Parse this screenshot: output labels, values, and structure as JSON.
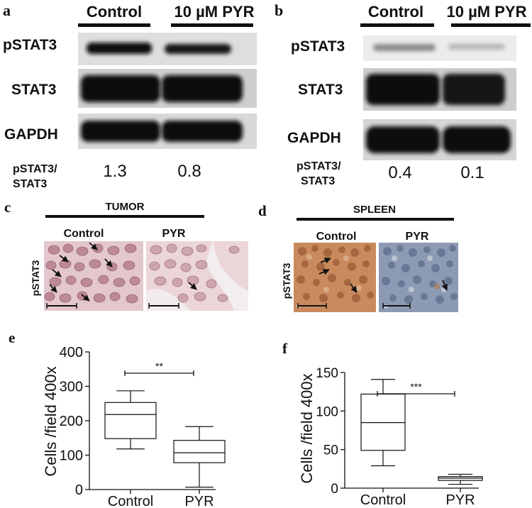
{
  "panel_letters": {
    "a": "a",
    "b": "b",
    "c": "c",
    "d": "d",
    "e": "e",
    "f": "f"
  },
  "western_a": {
    "conditions": [
      "Control",
      "10 µM PYR"
    ],
    "rows": [
      "pSTAT3",
      "STAT3",
      "GAPDH"
    ],
    "ratio_label": [
      "pSTAT3/",
      "STAT3"
    ],
    "ratios": [
      "1.3",
      "0.8"
    ]
  },
  "western_b": {
    "conditions": [
      "Control",
      "10 µM PYR"
    ],
    "rows": [
      "pSTAT3",
      "STAT3",
      "GAPDH"
    ],
    "ratio_label": [
      "pSTAT3/",
      "STAT3"
    ],
    "ratios": [
      "0.4",
      "0.1"
    ]
  },
  "histo_c": {
    "tissue": "TUMOR",
    "conditions": [
      "Control",
      "PYR"
    ],
    "stain": "pSTAT3"
  },
  "histo_d": {
    "tissue": "SPLEEN",
    "conditions": [
      "Control",
      "PYR"
    ],
    "stain": "pSTAT3"
  },
  "chart_data": [
    {
      "type": "box",
      "panel": "e",
      "categories": [
        "Control",
        "PYR"
      ],
      "ylabel": "Cells /field 400x",
      "ylim": [
        0,
        400
      ],
      "yticks": [
        "0",
        "100",
        "200",
        "300",
        "400"
      ],
      "boxes": [
        {
          "name": "Control",
          "min": 118,
          "q1": 148,
          "median": 218,
          "q3": 253,
          "max": 287
        },
        {
          "name": "PYR",
          "min": 7,
          "q1": 78,
          "median": 107,
          "q3": 143,
          "max": 183
        }
      ],
      "significance": "**"
    },
    {
      "type": "box",
      "panel": "f",
      "categories": [
        "Control",
        "PYR"
      ],
      "ylabel": "Cells /field 400x",
      "ylim": [
        0,
        150
      ],
      "yticks": [
        "0",
        "50",
        "100",
        "150"
      ],
      "boxes": [
        {
          "name": "Control",
          "min": 29,
          "q1": 49,
          "median": 85,
          "q3": 122,
          "max": 141
        },
        {
          "name": "PYR",
          "min": 5,
          "q1": 10,
          "median": 13,
          "q3": 15,
          "max": 18
        }
      ],
      "significance": "***"
    }
  ]
}
